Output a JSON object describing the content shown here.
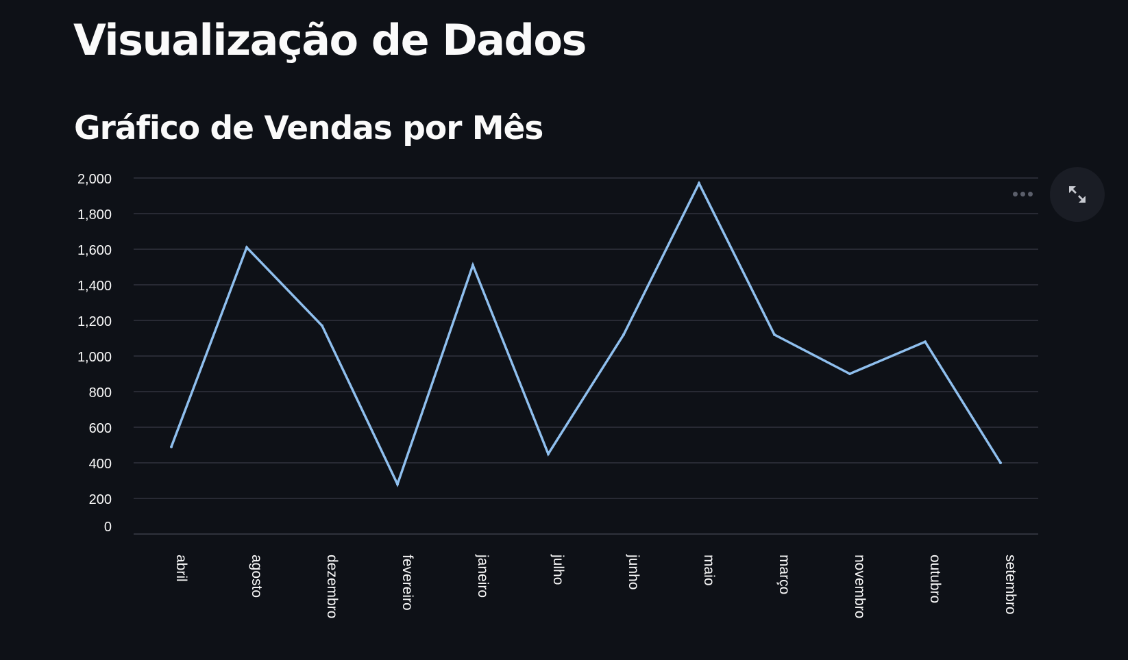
{
  "page": {
    "title": "Visualização de Dados",
    "subtitle": "Gráfico de Vendas por Mês"
  },
  "toolbar": {
    "menu_icon": "more-horizontal-icon",
    "expand_icon": "fullscreen-expand-icon"
  },
  "colors": {
    "background": "#0e1117",
    "line": "#8fbfee",
    "grid": "#31333f",
    "text": "#fafafa"
  },
  "chart_data": {
    "type": "line",
    "categories": [
      "abril",
      "agosto",
      "dezembro",
      "fevereiro",
      "janeiro",
      "julho",
      "junho",
      "maio",
      "março",
      "novembro",
      "outubro",
      "setembro"
    ],
    "values": [
      490,
      1610,
      1170,
      280,
      1510,
      450,
      1120,
      1970,
      1120,
      900,
      1080,
      400
    ],
    "title": "",
    "xlabel": "",
    "ylabel": "",
    "ylim": [
      0,
      2000
    ],
    "yticks": [
      0,
      200,
      400,
      600,
      800,
      1000,
      1200,
      1400,
      1600,
      1800,
      2000
    ],
    "ytick_labels": [
      "0",
      "200",
      "400",
      "600",
      "800",
      "1,000",
      "1,200",
      "1,400",
      "1,600",
      "1,800",
      "2,000"
    ],
    "grid": true,
    "legend": "none"
  }
}
